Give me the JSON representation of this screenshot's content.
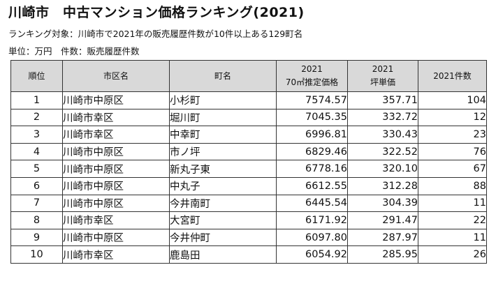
{
  "title": "川崎市　中古マンション価格ランキング(2021)",
  "subtitle": "ランキング対象：川崎市で2021年の販売履歴件数が10件以上ある129町名",
  "units": "単位：万円　件数：販売履歴件数",
  "table": {
    "headers": {
      "rank": "順位",
      "ward": "市区名",
      "town": "町名",
      "price_line1": "2021",
      "price_line2": "70㎡推定価格",
      "tsubo_line1": "2021",
      "tsubo_line2": "坪単価",
      "count": "2021件数"
    },
    "rows": [
      {
        "rank": "1",
        "ward": "川崎市中原区",
        "town": "小杉町",
        "price": "7574.57",
        "tsubo": "357.71",
        "count": "104"
      },
      {
        "rank": "2",
        "ward": "川崎市幸区",
        "town": "堀川町",
        "price": "7045.35",
        "tsubo": "332.72",
        "count": "12"
      },
      {
        "rank": "3",
        "ward": "川崎市幸区",
        "town": "中幸町",
        "price": "6996.81",
        "tsubo": "330.43",
        "count": "23"
      },
      {
        "rank": "4",
        "ward": "川崎市中原区",
        "town": "市ノ坪",
        "price": "6829.46",
        "tsubo": "322.52",
        "count": "76"
      },
      {
        "rank": "5",
        "ward": "川崎市中原区",
        "town": "新丸子東",
        "price": "6778.16",
        "tsubo": "320.10",
        "count": "67"
      },
      {
        "rank": "6",
        "ward": "川崎市中原区",
        "town": "中丸子",
        "price": "6612.55",
        "tsubo": "312.28",
        "count": "88"
      },
      {
        "rank": "7",
        "ward": "川崎市中原区",
        "town": "今井南町",
        "price": "6445.54",
        "tsubo": "304.39",
        "count": "11"
      },
      {
        "rank": "8",
        "ward": "川崎市幸区",
        "town": "大宮町",
        "price": "6171.92",
        "tsubo": "291.47",
        "count": "22"
      },
      {
        "rank": "9",
        "ward": "川崎市中原区",
        "town": "今井仲町",
        "price": "6097.80",
        "tsubo": "287.97",
        "count": "11"
      },
      {
        "rank": "10",
        "ward": "川崎市幸区",
        "town": "鹿島田",
        "price": "6054.92",
        "tsubo": "285.95",
        "count": "26"
      }
    ]
  }
}
